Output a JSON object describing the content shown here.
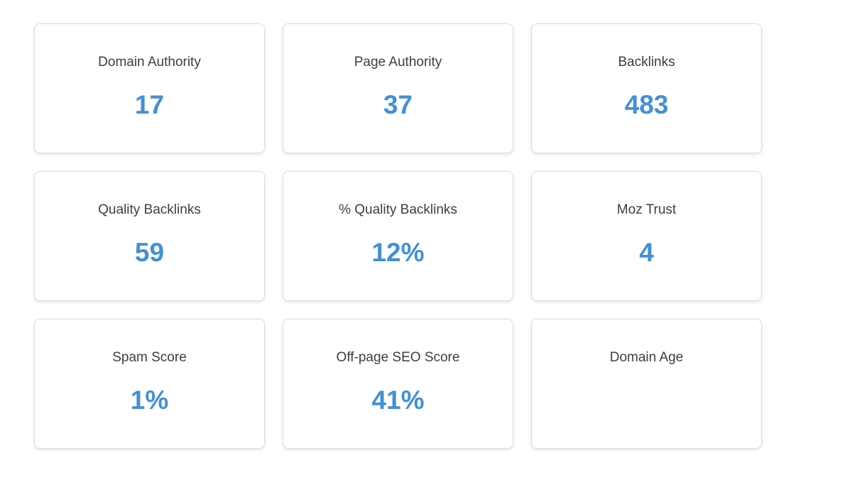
{
  "accent_color": "#4290d6",
  "metrics": [
    {
      "label": "Domain Authority",
      "value": "17"
    },
    {
      "label": "Page Authority",
      "value": "37"
    },
    {
      "label": "Backlinks",
      "value": "483"
    },
    {
      "label": "Quality Backlinks",
      "value": "59"
    },
    {
      "label": "% Quality Backlinks",
      "value": "12%"
    },
    {
      "label": "Moz Trust",
      "value": "4"
    },
    {
      "label": "Spam Score",
      "value": "1%"
    },
    {
      "label": "Off-page SEO Score",
      "value": "41%"
    },
    {
      "label": "Domain Age",
      "value": ""
    }
  ]
}
